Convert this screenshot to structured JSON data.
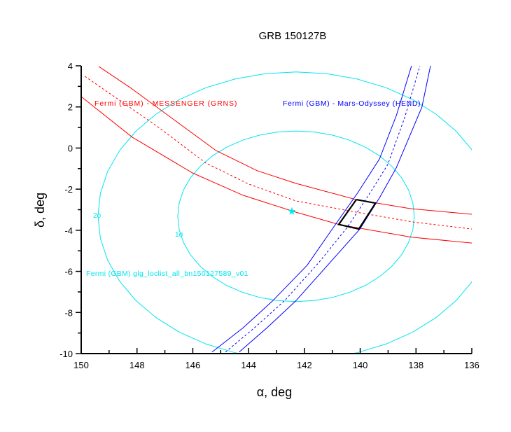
{
  "chart_data": {
    "type": "line",
    "title": "GRB 150127B",
    "xlabel": "α, deg",
    "ylabel": "δ, deg",
    "xlim": [
      150,
      136
    ],
    "ylim": [
      -10,
      4
    ],
    "x_ticks": [
      "150",
      "148",
      "146",
      "144",
      "142",
      "140",
      "138",
      "136"
    ],
    "x_tick_values": [
      150,
      148,
      146,
      144,
      142,
      140,
      138,
      136
    ],
    "y_ticks": [
      "4",
      "2",
      "0",
      "-2",
      "-4",
      "-6",
      "-8",
      "-10"
    ],
    "y_tick_values": [
      4,
      2,
      0,
      -2,
      -4,
      -6,
      -8,
      -10
    ],
    "grid": false,
    "colors": {
      "red": "#ff0000",
      "blue": "#0000ff",
      "cyan": "#00e5ee",
      "box": "#000000"
    },
    "annotations": {
      "messenger": "Fermi (GBM) - MESSENGER (GRNS)",
      "odyssey": "Fermi (GBM) - Mars-Odyssey (HEND)",
      "gbm": "Fermi (GBM) glg_loclist_all_bn150127589_v01",
      "sigma2": "2σ",
      "sigma1": "1σ"
    },
    "series": [
      {
        "name": "messenger-upper",
        "color": "#ff0000",
        "style": "solid",
        "points": [
          [
            149.37,
            3.97
          ],
          [
            148.2,
            2.9
          ],
          [
            147.0,
            1.7
          ],
          [
            145.17,
            -0.12
          ],
          [
            143.7,
            -1.1
          ],
          [
            142.31,
            -1.72
          ],
          [
            140.14,
            -2.51
          ],
          [
            138.2,
            -2.95
          ],
          [
            136.0,
            -3.22
          ]
        ]
      },
      {
        "name": "messenger-center",
        "color": "#ff0000",
        "style": "dashed",
        "points": [
          [
            149.87,
            3.49
          ],
          [
            147.39,
            1.17
          ],
          [
            145.53,
            -0.73
          ],
          [
            144.0,
            -1.75
          ],
          [
            142.31,
            -2.57
          ],
          [
            140.14,
            -3.12
          ],
          [
            138.1,
            -3.6
          ],
          [
            136.0,
            -3.94
          ]
        ]
      },
      {
        "name": "messenger-lower",
        "color": "#ff0000",
        "style": "solid",
        "points": [
          [
            150.0,
            2.5
          ],
          [
            148.17,
            0.53
          ],
          [
            146.01,
            -1.21
          ],
          [
            144.2,
            -2.3
          ],
          [
            142.31,
            -3.12
          ],
          [
            140.74,
            -3.73
          ],
          [
            138.16,
            -4.34
          ],
          [
            136.0,
            -4.62
          ]
        ]
      },
      {
        "name": "odyssey-left",
        "color": "#0000ff",
        "style": "solid",
        "points": [
          [
            145.31,
            -9.93
          ],
          [
            144.2,
            -8.75
          ],
          [
            143.14,
            -7.44
          ],
          [
            141.9,
            -5.7
          ],
          [
            140.93,
            -3.8
          ],
          [
            140.1,
            -2.2
          ],
          [
            139.31,
            -0.53
          ],
          [
            138.7,
            1.6
          ],
          [
            138.16,
            4.0
          ]
        ]
      },
      {
        "name": "odyssey-center",
        "color": "#0000ff",
        "style": "dashed",
        "points": [
          [
            144.83,
            -9.93
          ],
          [
            143.75,
            -8.7
          ],
          [
            142.72,
            -7.44
          ],
          [
            141.5,
            -5.6
          ],
          [
            140.47,
            -3.87
          ],
          [
            139.7,
            -2.3
          ],
          [
            139.01,
            -0.8
          ],
          [
            138.4,
            1.5
          ],
          [
            137.86,
            4.0
          ]
        ]
      },
      {
        "name": "odyssey-right",
        "color": "#0000ff",
        "style": "solid",
        "points": [
          [
            144.34,
            -9.93
          ],
          [
            143.3,
            -8.7
          ],
          [
            142.31,
            -7.44
          ],
          [
            141.1,
            -5.6
          ],
          [
            140.01,
            -3.94
          ],
          [
            139.3,
            -2.4
          ],
          [
            138.71,
            -0.97
          ],
          [
            137.79,
            1.99
          ],
          [
            137.48,
            4.0
          ]
        ]
      },
      {
        "name": "intersection-box",
        "color": "#000000",
        "style": "bold",
        "points": [
          [
            140.14,
            -2.51
          ],
          [
            139.45,
            -2.68
          ],
          [
            140.05,
            -3.94
          ],
          [
            140.77,
            -3.72
          ],
          [
            140.14,
            -2.51
          ]
        ]
      }
    ],
    "ellipses": [
      {
        "name": "gbm-1sigma",
        "color": "#00e5ee",
        "center": [
          142.3,
          -3.32
        ],
        "radii": [
          4.24,
          4.15
        ]
      },
      {
        "name": "gbm-2sigma",
        "color": "#00e5ee",
        "center": [
          142.3,
          -3.3
        ],
        "radii": [
          7.1,
          7.0
        ]
      }
    ],
    "marker": {
      "name": "gbm-center-star",
      "color": "#00e5ee",
      "point": [
        142.45,
        -3.08
      ]
    }
  }
}
